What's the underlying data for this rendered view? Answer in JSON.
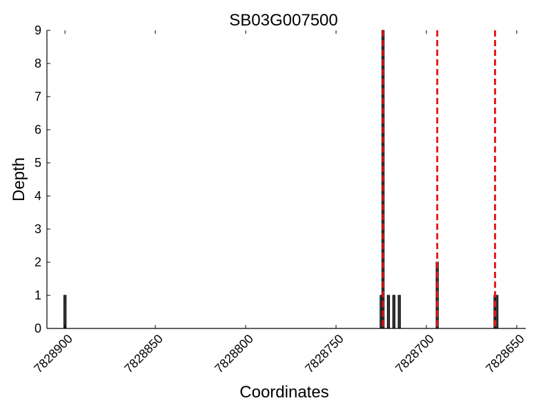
{
  "chart_data": {
    "type": "bar",
    "title": "SB03G007500",
    "xlabel": "Coordinates",
    "ylabel": "Depth",
    "xlim": [
      7828910,
      7828645
    ],
    "ylim": [
      0,
      9
    ],
    "x_inverted": true,
    "x_ticks": [
      7828900,
      7828850,
      7828800,
      7828750,
      7828700,
      7828650
    ],
    "x_tick_labels": [
      "7828900",
      "7828850",
      "7828800",
      "7828750",
      "7828700",
      "7828650"
    ],
    "y_ticks": [
      0,
      1,
      2,
      3,
      4,
      5,
      6,
      7,
      8,
      9
    ],
    "y_tick_labels": [
      "0",
      "1",
      "2",
      "3",
      "4",
      "5",
      "6",
      "7",
      "8",
      "9"
    ],
    "grid": false,
    "bars": [
      {
        "x": 7828900,
        "depth": 1
      },
      {
        "x": 7828725,
        "depth": 1
      },
      {
        "x": 7828724,
        "depth": 9
      },
      {
        "x": 7828721,
        "depth": 1
      },
      {
        "x": 7828718,
        "depth": 1
      },
      {
        "x": 7828715,
        "depth": 1
      },
      {
        "x": 7828694,
        "depth": 2
      },
      {
        "x": 7828662,
        "depth": 1
      },
      {
        "x": 7828661,
        "depth": 1
      }
    ],
    "reference_lines": [
      7828724,
      7828694,
      7828662
    ],
    "bar_color": "#3a3a3a",
    "bar_edge_color": "#000000",
    "reference_line_color": "#e8191c"
  }
}
